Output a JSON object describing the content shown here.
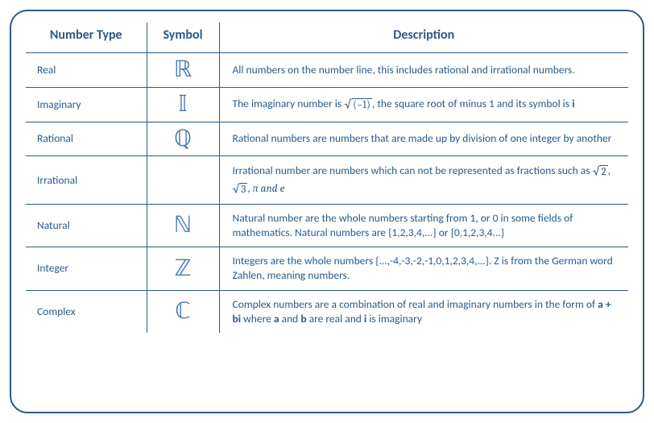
{
  "colors": {
    "border": "#2a5a8a",
    "text": "#2a5a8a",
    "symbol": "#4a7ab0",
    "background": "#ffffff"
  },
  "layout": {
    "border_radius": 22,
    "border_width": 2,
    "col_widths": {
      "type": 150,
      "symbol": 90
    }
  },
  "headers": {
    "type": "Number Type",
    "symbol": "Symbol",
    "description": "Description"
  },
  "rows": [
    {
      "type": "Real",
      "symbol": "ℝ",
      "desc_html": "All numbers on the number line, this includes rational and irrational numbers."
    },
    {
      "type": "Imaginary",
      "symbol": "𝕀",
      "desc_html": "The imaginary number is <span class=\"sqrt\"><span class=\"radical\">√</span><span class=\"radicand\">(−1)</span></span>, the square root of  minus 1 and its symbol is <b>i</b>"
    },
    {
      "type": "Rational",
      "symbol": "ℚ",
      "desc_html": "Rational numbers are numbers that are made up by division of one integer by another"
    },
    {
      "type": "Irrational",
      "symbol": "",
      "desc_html": "Irrational number are numbers which can not be represented as fractions such as <span class=\"sqrt\"><span class=\"radical\">√</span><span class=\"radicand\">2</span></span>, <span class=\"sqrt\"><span class=\"radical\">√</span><span class=\"radicand\">3</span></span>, <span class=\"math\">π and e</span>"
    },
    {
      "type": "Natural",
      "symbol": "ℕ",
      "desc_html": "Natural number are the whole numbers starting from 1, or 0 in some fields of mathematics. Natural numbers are {1,2,3,4,...} or {0,1,2,3,4...}"
    },
    {
      "type": "Integer",
      "symbol": "ℤ",
      "desc_html": "Integers are the whole numbers {...,-4,-3,-2,-1,0,1,2,3,4,...}. Z is from the German word Zahlen, meaning numbers."
    },
    {
      "type": "Complex",
      "symbol": "ℂ",
      "desc_html": "Complex numbers are a combination of real and imaginary numbers in the form of <b>a + bi</b> where <b>a</b> and <b>b</b> are real and <b>i</b> is imaginary"
    }
  ]
}
